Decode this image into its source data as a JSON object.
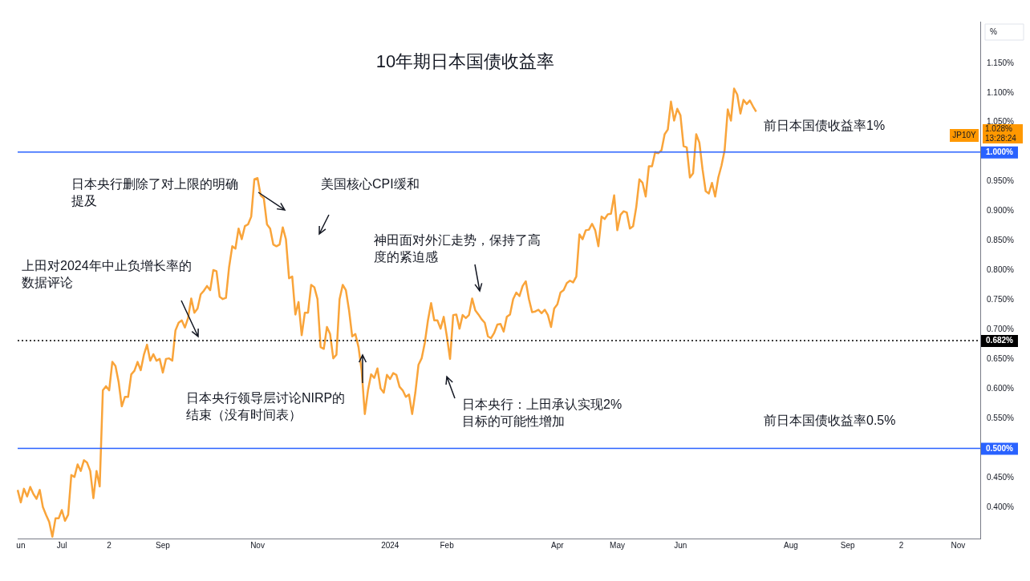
{
  "chart_data": {
    "type": "line",
    "title": "10年期日本国债收益率",
    "ylabel": "%",
    "categories": [
      null,
      "un",
      null,
      null,
      null,
      null,
      null,
      null,
      null,
      null,
      null,
      null,
      null,
      null,
      "Jul",
      null,
      null,
      null,
      null,
      null,
      null,
      null,
      null,
      null,
      null,
      null,
      null,
      null,
      null,
      "2",
      null,
      null,
      null,
      null,
      null,
      null,
      null,
      null,
      null,
      null,
      null,
      null,
      null,
      null,
      null,
      null,
      "Sep",
      null,
      null,
      null,
      null,
      null,
      null,
      null,
      null,
      null,
      null,
      null,
      null,
      null,
      null,
      null,
      null,
      null,
      null,
      null,
      null,
      null,
      null,
      null,
      null,
      null,
      null,
      null,
      null,
      null,
      "Nov",
      null,
      null,
      null,
      null,
      null,
      null,
      null,
      null,
      null,
      null,
      null,
      null,
      null,
      null,
      null,
      null,
      null,
      null,
      null,
      null,
      null,
      null,
      null,
      null,
      null,
      null,
      null,
      null,
      null,
      null,
      null,
      null,
      null,
      null,
      null,
      null,
      null,
      null,
      null,
      null,
      null,
      "2024",
      null,
      null,
      null,
      null,
      null,
      null,
      null,
      null,
      null,
      null,
      null,
      null,
      null,
      null,
      null,
      null,
      null,
      "Feb",
      null,
      null,
      null,
      null,
      null,
      null,
      null,
      null,
      null,
      null,
      null,
      null,
      null,
      null,
      null,
      null,
      null,
      null,
      null,
      null,
      null,
      null,
      null,
      null,
      null,
      null,
      null,
      null,
      null,
      null,
      null,
      null,
      null,
      null,
      "Apr",
      null,
      null,
      null,
      null,
      null,
      null,
      null,
      null,
      null,
      null,
      null,
      null,
      null,
      null,
      null,
      null,
      null,
      null,
      "May",
      null,
      null,
      null,
      null,
      null,
      null,
      null,
      null,
      null,
      null,
      null,
      null,
      null,
      null,
      null,
      null,
      null,
      null,
      null,
      "Jun",
      null,
      null,
      null,
      null,
      null,
      null,
      null,
      null,
      null,
      null,
      null,
      null,
      null,
      null,
      null,
      null,
      null,
      null,
      null,
      null,
      null,
      null,
      null,
      null,
      null,
      null,
      null,
      null,
      null,
      null,
      null,
      null,
      null,
      null,
      "Aug",
      null,
      null,
      null,
      null,
      null,
      null,
      null,
      null,
      null,
      null,
      null,
      null,
      null,
      null,
      null,
      null,
      null,
      "Sep",
      null,
      null,
      null,
      null,
      null,
      null,
      null,
      null,
      null,
      null,
      null,
      null,
      null,
      null,
      null,
      null,
      "2",
      null,
      null,
      null,
      null,
      null,
      null,
      null,
      null,
      null,
      null,
      null,
      null,
      null,
      null,
      null,
      null,
      null,
      "Nov",
      null,
      null,
      null,
      null,
      null,
      null,
      null
    ],
    "series": [
      {
        "color": "#f9a43a",
        "values": [
          0.43,
          0.409,
          0.432,
          0.419,
          0.435,
          0.423,
          0.415,
          0.43,
          0.401,
          0.388,
          0.376,
          0.351,
          0.382,
          0.382,
          0.396,
          0.378,
          0.388,
          0.455,
          0.452,
          0.473,
          0.462,
          0.48,
          0.476,
          0.462,
          0.416,
          0.462,
          0.436,
          0.598,
          0.605,
          0.598,
          0.646,
          0.639,
          0.612,
          0.571,
          0.587,
          0.587,
          0.625,
          0.631,
          0.646,
          0.632,
          0.658,
          0.675,
          0.648,
          0.659,
          0.648,
          0.651,
          0.628,
          0.651,
          0.652,
          0.648,
          0.699,
          0.712,
          0.716,
          0.704,
          0.72,
          0.753,
          0.729,
          0.736,
          0.76,
          0.766,
          0.774,
          0.767,
          0.801,
          0.799,
          0.756,
          0.752,
          0.754,
          0.806,
          0.841,
          0.837,
          0.871,
          0.853,
          0.875,
          0.878,
          0.891,
          0.954,
          0.956,
          0.927,
          0.922,
          0.878,
          0.871,
          0.844,
          0.841,
          0.844,
          0.873,
          0.853,
          0.787,
          0.79,
          0.726,
          0.747,
          0.691,
          0.729,
          0.729,
          0.776,
          0.772,
          0.752,
          0.671,
          0.668,
          0.705,
          0.693,
          0.652,
          0.658,
          0.752,
          0.776,
          0.767,
          0.733,
          0.689,
          0.693,
          0.671,
          0.631,
          0.558,
          0.598,
          0.625,
          0.619,
          0.635,
          0.601,
          0.594,
          0.624,
          0.617,
          0.627,
          0.624,
          0.604,
          0.598,
          0.587,
          0.591,
          0.558,
          0.594,
          0.641,
          0.652,
          0.678,
          0.716,
          0.745,
          0.716,
          0.716,
          0.702,
          0.722,
          0.689,
          0.651,
          0.725,
          0.726,
          0.702,
          0.725,
          0.72,
          0.725,
          0.753,
          0.733,
          0.726,
          0.718,
          0.712,
          0.689,
          0.686,
          0.695,
          0.709,
          0.71,
          0.697,
          0.722,
          0.726,
          0.752,
          0.763,
          0.757,
          0.774,
          0.782,
          0.752,
          0.73,
          0.731,
          0.734,
          0.728,
          0.734,
          0.725,
          0.705,
          0.736,
          0.743,
          0.763,
          0.767,
          0.779,
          0.783,
          0.78,
          0.79,
          0.861,
          0.853,
          0.868,
          0.869,
          0.879,
          0.868,
          0.841,
          0.891,
          0.887,
          0.895,
          0.896,
          0.927,
          0.868,
          0.894,
          0.9,
          0.898,
          0.871,
          0.875,
          0.907,
          0.954,
          0.948,
          0.925,
          0.976,
          0.976,
          1.0,
          0.998,
          1.003,
          1.03,
          1.038,
          1.085,
          1.053,
          1.073,
          1.062,
          1.01,
          1.008,
          0.957,
          0.964,
          1.03,
          1.016,
          0.971,
          0.934,
          0.93,
          0.948,
          0.925,
          0.957,
          0.977,
          1.003,
          1.072,
          1.053,
          1.107,
          1.097,
          1.065,
          1.088,
          1.081,
          1.087,
          1.077,
          1.068,
          null,
          null,
          null,
          null,
          null,
          null,
          null,
          null,
          null,
          null,
          null,
          null,
          null,
          null,
          null,
          null,
          null,
          null,
          null,
          null,
          null,
          null,
          null,
          null,
          null,
          null,
          null,
          null,
          null,
          null,
          null,
          null,
          null,
          null,
          null,
          null,
          null,
          null,
          null,
          null,
          null,
          null,
          null,
          null,
          null,
          null,
          null,
          null,
          null,
          null,
          null,
          null,
          null,
          null,
          null,
          null,
          null,
          null,
          null,
          null,
          null,
          null,
          null,
          null,
          null,
          null,
          null,
          null,
          null,
          null,
          null
        ]
      }
    ],
    "ylim": [
      0.348,
      1.22
    ],
    "yticks": [
      {
        "value": 0.4,
        "label": "0.400%"
      },
      {
        "value": 0.45,
        "label": "0.450%"
      },
      {
        "value": 0.55,
        "label": "0.550%"
      },
      {
        "value": 0.6,
        "label": "0.600%"
      },
      {
        "value": 0.65,
        "label": "0.650%"
      },
      {
        "value": 0.7,
        "label": "0.700%"
      },
      {
        "value": 0.75,
        "label": "0.750%"
      },
      {
        "value": 0.8,
        "label": "0.800%"
      },
      {
        "value": 0.85,
        "label": "0.850%"
      },
      {
        "value": 0.9,
        "label": "0.900%"
      },
      {
        "value": 0.95,
        "label": "0.950%"
      },
      {
        "value": 1.05,
        "label": "1.050%"
      },
      {
        "value": 1.1,
        "label": "1.100%"
      },
      {
        "value": 1.15,
        "label": "1.150%"
      }
    ],
    "ref_lines": [
      {
        "axis": "y",
        "value": 1.0,
        "label": "1.000%",
        "color": "#2962ff",
        "line_style": "solid"
      },
      {
        "axis": "y",
        "value": 0.5,
        "label": "0.500%",
        "color": "#2962ff",
        "line_style": "solid"
      },
      {
        "axis": "y",
        "value": 0.682,
        "label": "0.682%",
        "color": "#000000",
        "line_style": "dotted"
      }
    ],
    "annotations": [
      "日本央行删除了对上限的明确提及",
      "美国核心CPI缓和",
      "上田对2024年中止负增长率的数据评论",
      "神田面对外汇走势，保持了高度的紧迫感",
      "日本央行领导层讨论NIRP的结束（没有时间表）",
      "日本央行：上田承认实现2%目标的可能性增加",
      "前日本国债收益率1%",
      "前日本国债收益率0.5%",
      {
        "text": "JP10Y",
        "y": 1.028
      },
      "1.028%",
      "13:28:24"
    ],
    "grid": false,
    "legend": false,
    "marker": "none",
    "line_style": "solid"
  }
}
